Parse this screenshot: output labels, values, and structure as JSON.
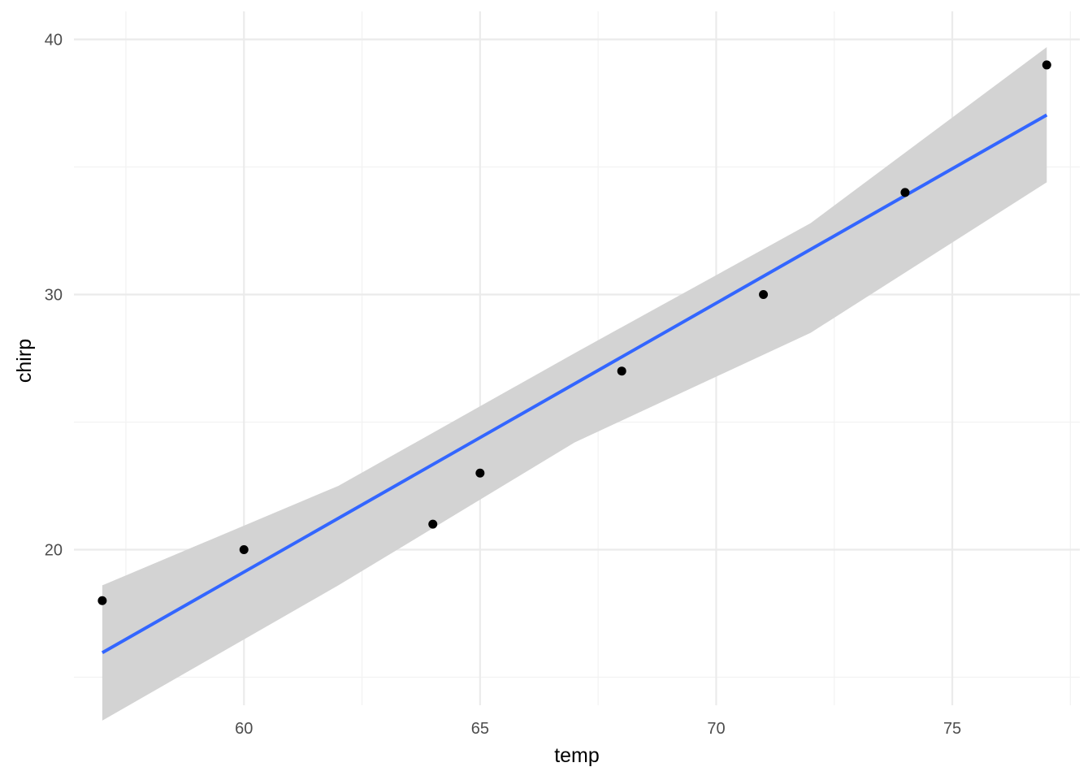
{
  "chart_data": {
    "type": "scatter",
    "title": "",
    "xlabel": "temp",
    "ylabel": "chirp",
    "xlim": [
      56.4,
      77.7
    ],
    "ylim": [
      13.9,
      41.1
    ],
    "x_major_ticks": [
      60,
      65,
      70,
      75
    ],
    "x_minor_ticks": [
      57.5,
      62.5,
      67.5,
      72.5,
      77.5
    ],
    "y_major_ticks": [
      20,
      30,
      40
    ],
    "y_minor_ticks": [
      15,
      25,
      35
    ],
    "grid": true,
    "legend": "none",
    "points": [
      {
        "x": 57,
        "y": 18
      },
      {
        "x": 60,
        "y": 20
      },
      {
        "x": 64,
        "y": 21
      },
      {
        "x": 65,
        "y": 23
      },
      {
        "x": 68,
        "y": 27
      },
      {
        "x": 71,
        "y": 30
      },
      {
        "x": 74,
        "y": 34
      },
      {
        "x": 77,
        "y": 39
      }
    ],
    "fit_line": {
      "method": "lm",
      "x": [
        57,
        77
      ],
      "y": [
        15.96,
        37.04
      ]
    },
    "confidence_band": {
      "x": [
        57,
        62,
        67,
        72,
        77
      ],
      "upper": [
        18.6,
        22.5,
        27.7,
        32.8,
        39.7
      ],
      "lower": [
        13.3,
        18.6,
        24.2,
        28.5,
        34.4
      ]
    },
    "colors": {
      "point": "#000000",
      "line": "#3366ff",
      "band": "#d3d3d3",
      "grid_major": "#ebebeb",
      "grid_minor": "#f2f2f2"
    }
  }
}
